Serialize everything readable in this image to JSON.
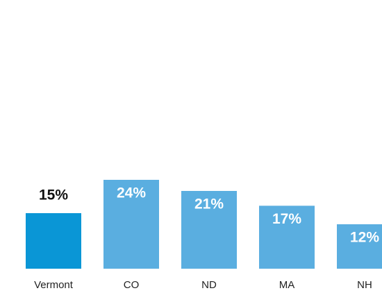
{
  "chart_data": {
    "type": "bar",
    "categories": [
      "Vermont",
      "CO",
      "ND",
      "MA",
      "NH"
    ],
    "values": [
      15,
      24,
      21,
      17,
      12
    ],
    "value_labels": [
      "15%",
      "24%",
      "21%",
      "17%",
      "12%"
    ],
    "colors": [
      "#0a96d6",
      "#5aaee0",
      "#5aaee0",
      "#5aaee0",
      "#5aaee0"
    ]
  }
}
